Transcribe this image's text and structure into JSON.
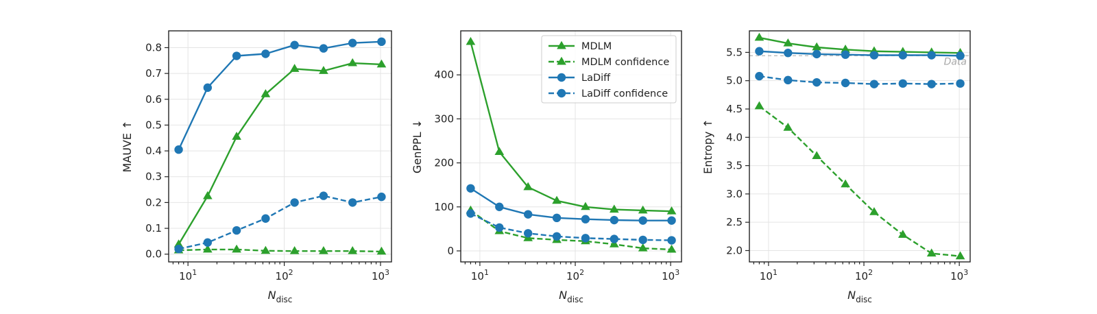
{
  "chart_data": [
    {
      "type": "line",
      "xscale": "log",
      "xlim": [
        6.3,
        1300
      ],
      "ylim": [
        -0.03,
        0.865
      ],
      "xticks": [
        10,
        100,
        1000
      ],
      "xtick_labels": [
        [
          "10",
          "1"
        ],
        [
          "10",
          "2"
        ],
        [
          "10",
          "3"
        ]
      ],
      "yticks": [
        0.0,
        0.1,
        0.2,
        0.3,
        0.4,
        0.5,
        0.6,
        0.7,
        0.8
      ],
      "ytick_labels": [
        "0.0",
        "0.1",
        "0.2",
        "0.3",
        "0.4",
        "0.5",
        "0.6",
        "0.7",
        "0.8"
      ],
      "xlabel": {
        "main": "N",
        "sub": "disc"
      },
      "ylabel": "MAUVE ↑",
      "grid": true,
      "x": [
        8,
        16,
        32,
        64,
        128,
        256,
        512,
        1024
      ],
      "series": [
        {
          "name": "MDLM",
          "values": [
            0.038,
            0.225,
            0.455,
            0.62,
            0.718,
            0.71,
            0.74,
            0.735
          ],
          "color": "#2ca02c",
          "marker": "triangle",
          "dashed": false
        },
        {
          "name": "MDLM confidence",
          "values": [
            0.015,
            0.018,
            0.018,
            0.013,
            0.012,
            0.012,
            0.012,
            0.01
          ],
          "color": "#2ca02c",
          "marker": "triangle",
          "dashed": true
        },
        {
          "name": "LaDiff",
          "values": [
            0.405,
            0.645,
            0.768,
            0.776,
            0.81,
            0.797,
            0.818,
            0.823
          ],
          "color": "#1f77b4",
          "marker": "circle",
          "dashed": false
        },
        {
          "name": "LaDiff confidence",
          "values": [
            0.02,
            0.045,
            0.092,
            0.138,
            0.2,
            0.226,
            0.2,
            0.222
          ],
          "color": "#1f77b4",
          "marker": "circle",
          "dashed": true
        }
      ]
    },
    {
      "type": "line",
      "xscale": "log",
      "xlim": [
        6.3,
        1300
      ],
      "ylim": [
        -25,
        500
      ],
      "xticks": [
        10,
        100,
        1000
      ],
      "xtick_labels": [
        [
          "10",
          "1"
        ],
        [
          "10",
          "2"
        ],
        [
          "10",
          "3"
        ]
      ],
      "yticks": [
        0,
        100,
        200,
        300,
        400
      ],
      "ytick_labels": [
        "0",
        "100",
        "200",
        "300",
        "400"
      ],
      "xlabel": {
        "main": "N",
        "sub": "disc"
      },
      "ylabel": "GenPPL ↓",
      "grid": true,
      "legend": "top-right",
      "x": [
        8,
        16,
        32,
        64,
        128,
        256,
        512,
        1024
      ],
      "series": [
        {
          "name": "MDLM",
          "values": [
            475,
            225,
            145,
            114,
            100,
            94,
            92,
            90
          ],
          "color": "#2ca02c",
          "marker": "triangle",
          "dashed": false
        },
        {
          "name": "MDLM confidence",
          "values": [
            92,
            45,
            29,
            25,
            22,
            15,
            6,
            3
          ],
          "color": "#2ca02c",
          "marker": "triangle",
          "dashed": true
        },
        {
          "name": "LaDiff",
          "values": [
            142,
            100,
            83,
            75,
            72,
            70,
            69,
            69
          ],
          "color": "#1f77b4",
          "marker": "circle",
          "dashed": false
        },
        {
          "name": "LaDiff confidence",
          "values": [
            85,
            53,
            40,
            33,
            29,
            27,
            25,
            24
          ],
          "color": "#1f77b4",
          "marker": "circle",
          "dashed": true
        }
      ]
    },
    {
      "type": "line",
      "xscale": "log",
      "xlim": [
        6.3,
        1300
      ],
      "ylim": [
        1.8,
        5.88
      ],
      "xticks": [
        10,
        100,
        1000
      ],
      "xtick_labels": [
        [
          "10",
          "1"
        ],
        [
          "10",
          "2"
        ],
        [
          "10",
          "3"
        ]
      ],
      "yticks": [
        2.0,
        2.5,
        3.0,
        3.5,
        4.0,
        4.5,
        5.0,
        5.5
      ],
      "ytick_labels": [
        "2.0",
        "2.5",
        "3.0",
        "3.5",
        "4.0",
        "4.5",
        "5.0",
        "5.5"
      ],
      "xlabel": {
        "main": "N",
        "sub": "disc"
      },
      "ylabel": "Entropy ↑",
      "grid": true,
      "reference_line": {
        "label": "Data",
        "value": 5.44,
        "color": "#bbbbbb"
      },
      "x": [
        8,
        16,
        32,
        64,
        128,
        256,
        512,
        1024
      ],
      "series": [
        {
          "name": "MDLM",
          "values": [
            5.76,
            5.66,
            5.59,
            5.55,
            5.52,
            5.51,
            5.5,
            5.49
          ],
          "color": "#2ca02c",
          "marker": "triangle",
          "dashed": false
        },
        {
          "name": "MDLM confidence",
          "values": [
            4.55,
            4.17,
            3.67,
            3.17,
            2.68,
            2.28,
            1.95,
            1.9
          ],
          "color": "#2ca02c",
          "marker": "triangle",
          "dashed": true
        },
        {
          "name": "LaDiff",
          "values": [
            5.52,
            5.49,
            5.47,
            5.46,
            5.45,
            5.45,
            5.45,
            5.44
          ],
          "color": "#1f77b4",
          "marker": "circle",
          "dashed": false
        },
        {
          "name": "LaDiff confidence",
          "values": [
            5.08,
            5.01,
            4.97,
            4.96,
            4.94,
            4.95,
            4.94,
            4.95
          ],
          "color": "#1f77b4",
          "marker": "circle",
          "dashed": true
        }
      ]
    }
  ]
}
